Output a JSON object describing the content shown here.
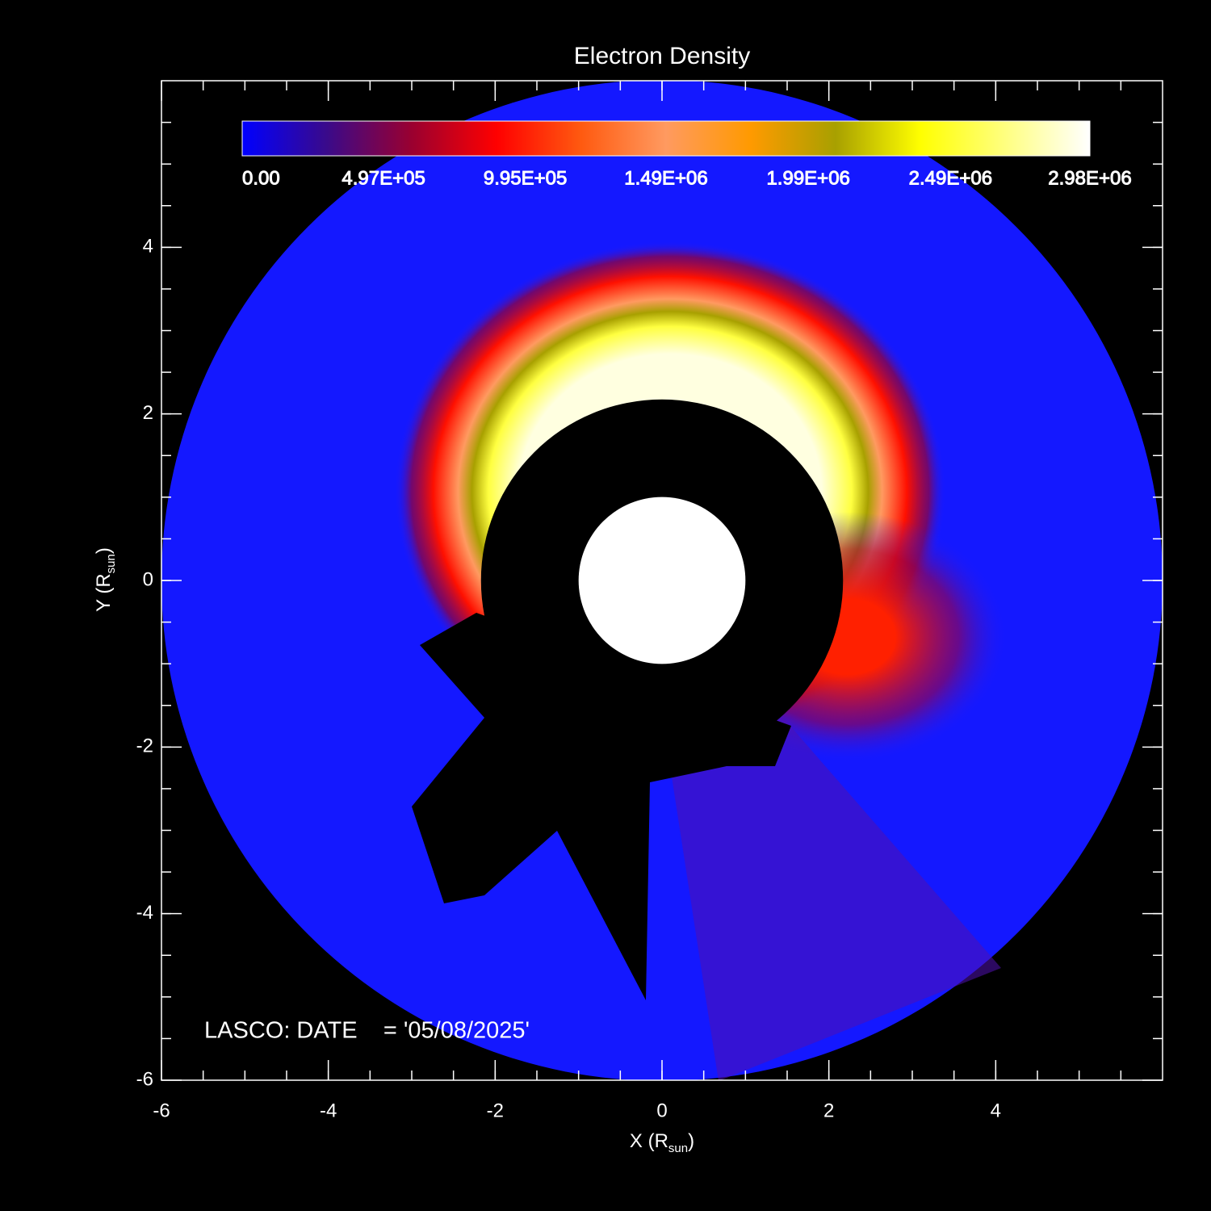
{
  "chart_data": {
    "type": "image",
    "title": "Electron Density",
    "xlabel": {
      "main": "X (R",
      "sub": "sun",
      "end": ")"
    },
    "ylabel": {
      "main": "Y (R",
      "sub": "sun",
      "end": ")"
    },
    "xlim": [
      -6,
      6
    ],
    "ylim": [
      -6,
      6
    ],
    "xticks": [
      -6,
      -4,
      -2,
      0,
      2,
      4
    ],
    "yticks": [
      -6,
      -4,
      -2,
      0,
      2,
      4
    ],
    "colorbar": {
      "clim": [
        0,
        2980000
      ],
      "ticks": [
        {
          "value": 0,
          "label": "0.00"
        },
        {
          "value": 497000,
          "label": "4.97E+05"
        },
        {
          "value": 995000,
          "label": "9.95E+05"
        },
        {
          "value": 1490000,
          "label": "1.49E+06"
        },
        {
          "value": 1990000,
          "label": "1.99E+06"
        },
        {
          "value": 2490000,
          "label": "2.49E+06"
        },
        {
          "value": 2980000,
          "label": "2.98E+06"
        }
      ],
      "colormap": [
        "#0000ff",
        "#3a0a8a",
        "#9a0030",
        "#ff0000",
        "#ff5a10",
        "#ff9a60",
        "#ff9a00",
        "#a8a000",
        "#ffff00",
        "#ffff80",
        "#ffffff"
      ]
    },
    "annotation": "LASCO: DATE    = '05/08/2025'"
  }
}
